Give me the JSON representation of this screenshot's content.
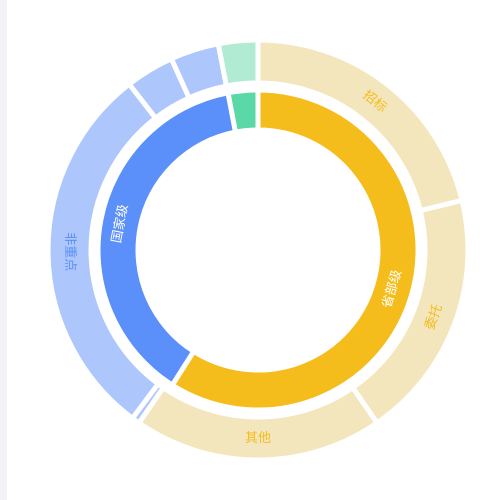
{
  "chart_data": {
    "type": "sunburst",
    "title": "",
    "start_angle_deg": 90,
    "direction": "clockwise",
    "levels": [
      {
        "ring": "inner",
        "segments": [
          {
            "name": "省部级",
            "value": 59,
            "color": "#f5bd1c",
            "label_color": "#ffffff",
            "show_label": true
          },
          {
            "name": "国家级",
            "value": 38,
            "color": "#5b8ff9",
            "label_color": "#ffffff",
            "show_label": true
          },
          {
            "name": "",
            "value": 3,
            "color": "#5ad8a6",
            "label_color": "#ffffff",
            "show_label": false
          }
        ]
      },
      {
        "ring": "outer",
        "segments": [
          {
            "name": "招标",
            "value": 21,
            "color": "#f3e5bc",
            "label_color": "#f5bd1c",
            "show_label": true
          },
          {
            "name": "委托",
            "value": 19,
            "color": "#f3e5bc",
            "label_color": "#f5bd1c",
            "show_label": true
          },
          {
            "name": "其他",
            "value": 19,
            "color": "#f3e5bc",
            "label_color": "#f5bd1c",
            "show_label": true
          },
          {
            "name": "",
            "value": 0.6,
            "color": "#adc6fc",
            "label_color": "#5b8ff9",
            "show_label": false
          },
          {
            "name": "非重点",
            "value": 29,
            "color": "#adc6fc",
            "label_color": "#5b8ff9",
            "show_label": true
          },
          {
            "name": "",
            "value": 3.7,
            "color": "#adc6fc",
            "label_color": "#5b8ff9",
            "show_label": false
          },
          {
            "name": "",
            "value": 3.7,
            "color": "#adc6fc",
            "label_color": "#5b8ff9",
            "show_label": false
          },
          {
            "name": "",
            "value": 3,
            "color": "#b2ebd4",
            "label_color": "#5ad8a6",
            "show_label": false
          }
        ]
      }
    ]
  }
}
